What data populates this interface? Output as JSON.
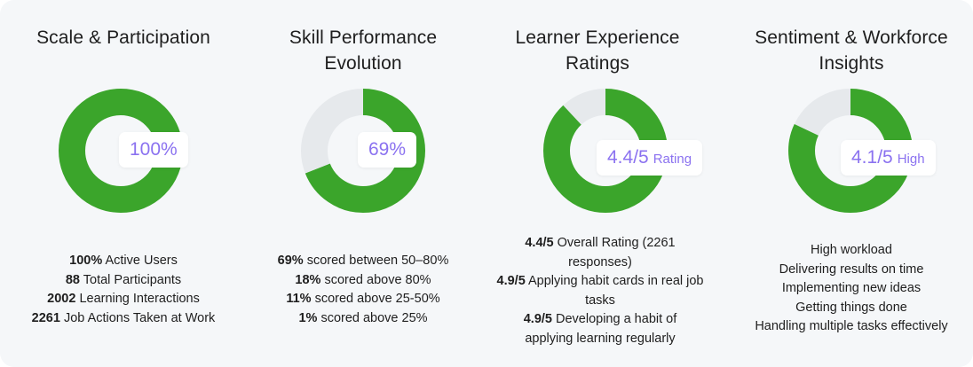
{
  "colors": {
    "accent": "#3ba52b",
    "track": "#e6e9ec",
    "label": "#8b72f0",
    "panel": "#f5f7f9"
  },
  "chart_data": [
    {
      "type": "pie",
      "title": "Scale & Participation",
      "slices": [
        {
          "value": 100,
          "color": "#3ba52b"
        }
      ],
      "center_label": {
        "value": "100%",
        "unit": ""
      },
      "stats": [
        {
          "value": "100%",
          "text": "Active Users"
        },
        {
          "value": "88",
          "text": "Total Participants"
        },
        {
          "value": "2002",
          "text": "Learning Interactions"
        },
        {
          "value": "2261",
          "text": "Job Actions Taken at Work"
        }
      ]
    },
    {
      "type": "pie",
      "title": "Skill Performance Evolution",
      "slices": [
        {
          "value": 69,
          "color": "#3ba52b"
        },
        {
          "value": 31,
          "color": "#e6e9ec"
        }
      ],
      "center_label": {
        "value": "69%",
        "unit": ""
      },
      "stats": [
        {
          "value": "69%",
          "text": "scored between 50–80%"
        },
        {
          "value": "18%",
          "text": "scored above 80%"
        },
        {
          "value": "11%",
          "text": "scored above 25-50%"
        },
        {
          "value": "1%",
          "text": "scored above 25%"
        }
      ]
    },
    {
      "type": "pie",
      "title": "Learner Experience Ratings",
      "slices": [
        {
          "value": 88,
          "color": "#3ba52b"
        },
        {
          "value": 12,
          "color": "#e6e9ec"
        }
      ],
      "center_label": {
        "value": "4.4/5",
        "unit": "Rating"
      },
      "stats": [
        {
          "value": "4.4/5",
          "text": "Overall Rating (2261 responses)"
        },
        {
          "value": "4.9/5",
          "text": "Applying habit cards in real job tasks"
        },
        {
          "value": "4.9/5",
          "text": "Developing a habit of applying learning regularly"
        }
      ]
    },
    {
      "type": "pie",
      "title": "Sentiment & Workforce Insights",
      "slices": [
        {
          "value": 82,
          "color": "#3ba52b"
        },
        {
          "value": 18,
          "color": "#e6e9ec"
        }
      ],
      "center_label": {
        "value": "4.1/5",
        "unit": "High"
      },
      "stats": [
        {
          "value": "",
          "text": "High workload"
        },
        {
          "value": "",
          "text": "Delivering results on time"
        },
        {
          "value": "",
          "text": "Implementing new ideas"
        },
        {
          "value": "",
          "text": "Getting things done"
        },
        {
          "value": "",
          "text": "Handling multiple tasks effectively"
        }
      ]
    }
  ]
}
